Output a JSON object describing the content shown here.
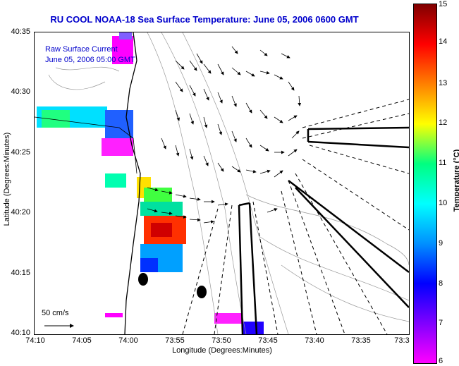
{
  "header": {
    "title": "RU COOL  NOAA-18  Sea Surface Temperature:  June 05, 2006 0600 GMT"
  },
  "legend": {
    "product": "Raw Surface Current",
    "date": "June 05, 2006 05:00 GMT",
    "scale": "50 cm/s"
  },
  "axes": {
    "x_title": "Longitude (Degrees:Minutes)",
    "y_title": "Latitude (Degrees:Minutes)",
    "x_ticks": [
      "74:10",
      "74:05",
      "74:00",
      "73:55",
      "73:50",
      "73:45",
      "73:40",
      "73:35",
      "73:3"
    ],
    "y_ticks": [
      "40:35",
      "40:30",
      "40:25",
      "40:20",
      "40:15",
      "40:10"
    ]
  },
  "colorbar": {
    "title": "Temperature (°C)",
    "ticks": [
      "15",
      "14",
      "13",
      "12",
      "11",
      "10",
      "9",
      "8",
      "7",
      "6"
    ],
    "range": [
      6,
      15
    ],
    "colors": [
      "#ff00ff",
      "#8000ff",
      "#0000ff",
      "#0090ff",
      "#00ffff",
      "#00ff80",
      "#ffff00",
      "#ff8000",
      "#ff0000",
      "#800000"
    ]
  }
}
